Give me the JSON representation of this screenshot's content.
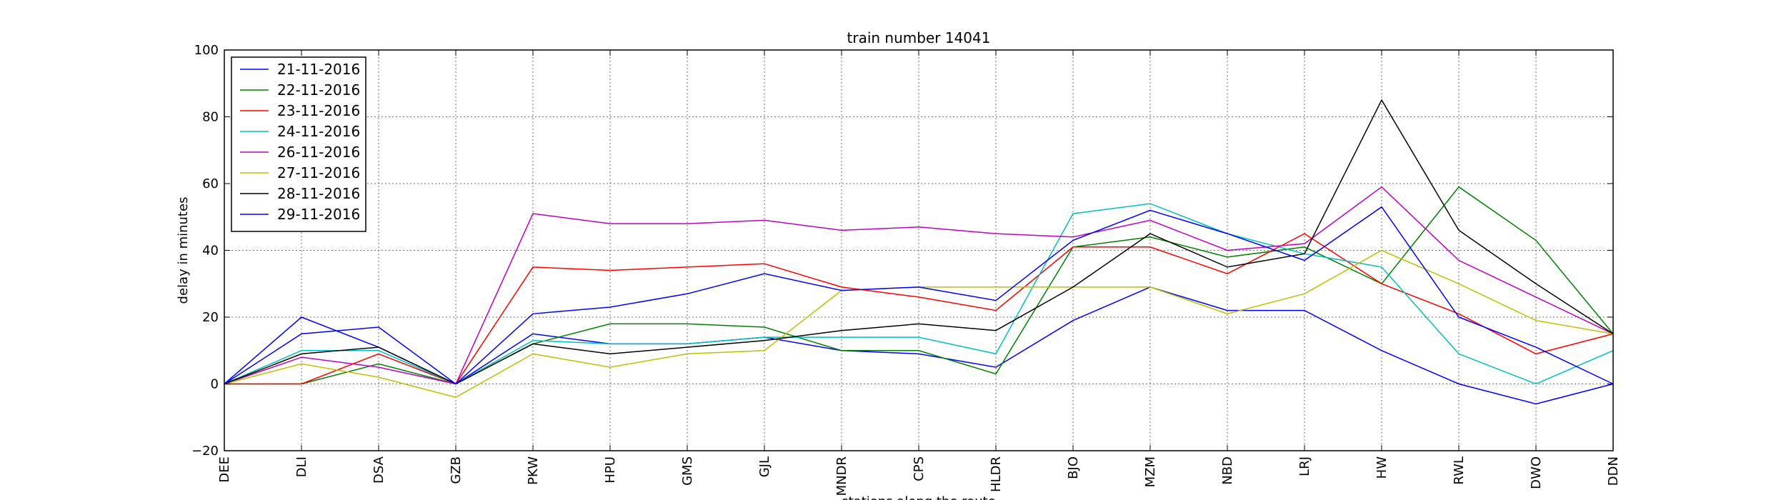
{
  "chart_data": {
    "type": "line",
    "title": "train number 14041",
    "xlabel": "stations along the route",
    "ylabel": "delay in minutes",
    "ylim": [
      -20,
      100
    ],
    "yticks": [
      "−20",
      "0",
      "20",
      "40",
      "60",
      "80",
      "100"
    ],
    "grid": true,
    "legend_position": "top-left",
    "categories": [
      "DEE",
      "DLI",
      "DSA",
      "GZB",
      "PKW",
      "HPU",
      "GMS",
      "GJL",
      "MNDR",
      "CPS",
      "HLDR",
      "BJO",
      "MZM",
      "NBD",
      "LRJ",
      "HW",
      "RWL",
      "DWO",
      "DDN"
    ],
    "series": [
      {
        "name": "21-11-2016",
        "color": "#0000ff",
        "values": [
          0,
          20,
          11,
          0,
          15,
          12,
          12,
          14,
          10,
          9,
          5,
          19,
          29,
          22,
          22,
          10,
          0,
          -6,
          0
        ]
      },
      {
        "name": "22-11-2016",
        "color": "#008000",
        "values": [
          0,
          0,
          6,
          0,
          12,
          18,
          18,
          17,
          10,
          10,
          3,
          41,
          44,
          38,
          41,
          30,
          59,
          43,
          15
        ]
      },
      {
        "name": "23-11-2016",
        "color": "#ff0000",
        "values": [
          0,
          0,
          9,
          0,
          35,
          34,
          35,
          36,
          29,
          26,
          22,
          41,
          41,
          33,
          45,
          30,
          21,
          9,
          15
        ]
      },
      {
        "name": "24-11-2016",
        "color": "#00bfbf",
        "values": [
          0,
          10,
          10,
          0,
          13,
          12,
          12,
          14,
          14,
          14,
          9,
          51,
          54,
          45,
          39,
          35,
          9,
          0,
          10
        ]
      },
      {
        "name": "26-11-2016",
        "color": "#bf00bf",
        "values": [
          0,
          8,
          5,
          0,
          51,
          48,
          48,
          49,
          46,
          47,
          45,
          44,
          49,
          40,
          42,
          59,
          37,
          26,
          15
        ]
      },
      {
        "name": "27-11-2016",
        "color": "#bfbf00",
        "values": [
          0,
          6,
          2,
          -4,
          9,
          5,
          9,
          10,
          28,
          29,
          29,
          29,
          29,
          21,
          27,
          40,
          30,
          19,
          15
        ]
      },
      {
        "name": "28-11-2016",
        "color": "#000000",
        "values": [
          0,
          9,
          11,
          0,
          12,
          9,
          11,
          13,
          16,
          18,
          16,
          29,
          45,
          35,
          39,
          85,
          46,
          30,
          15
        ]
      },
      {
        "name": "29-11-2016",
        "color": "#0000ff",
        "values": [
          0,
          15,
          17,
          0,
          21,
          23,
          27,
          33,
          28,
          29,
          25,
          43,
          52,
          45,
          37,
          53,
          20,
          11,
          0
        ]
      }
    ]
  }
}
